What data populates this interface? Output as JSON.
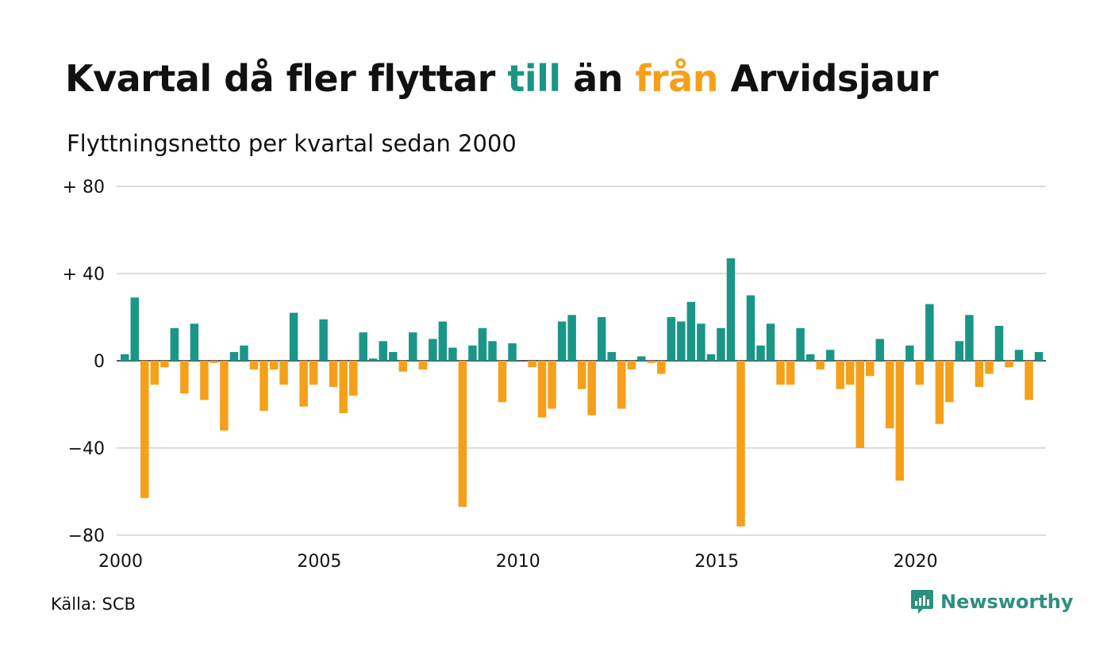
{
  "title": {
    "part1": "Kvartal då fler flyttar ",
    "till": "till",
    "part2": " än ",
    "fran": "från",
    "part3": " Arvidsjaur"
  },
  "subtitle": "Flyttningsnetto per kvartal sedan 2000",
  "source": "Källa: SCB",
  "brand": "Newsworthy",
  "colors": {
    "positive": "#1a9686",
    "negative": "#f5a01a",
    "grid": "#dddddd",
    "zero": "#222222"
  },
  "chart_data": {
    "type": "bar",
    "title": "Kvartal då fler flyttar till än från Arvidsjaur",
    "subtitle": "Flyttningsnetto per kvartal sedan 2000",
    "start_year": 2000,
    "periods_per_year": 4,
    "x_ticks": [
      "2000",
      "2005",
      "2010",
      "2015",
      "2020"
    ],
    "y_ticks": [
      {
        "value": 80,
        "label": "+ 80"
      },
      {
        "value": 40,
        "label": "+ 40"
      },
      {
        "value": 0,
        "label": "0"
      },
      {
        "value": -40,
        "label": "−40"
      },
      {
        "value": -80,
        "label": "−80"
      }
    ],
    "ylim": [
      -80,
      80
    ],
    "grid": true,
    "values": [
      3,
      29,
      -63,
      -11,
      -3,
      15,
      -15,
      17,
      -18,
      -1,
      -32,
      4,
      7,
      -4,
      -23,
      -4,
      -11,
      22,
      -21,
      -11,
      19,
      -12,
      -24,
      -16,
      13,
      1,
      9,
      4,
      -5,
      13,
      -4,
      10,
      18,
      6,
      -67,
      7,
      15,
      9,
      -19,
      8,
      0,
      -3,
      -26,
      -22,
      18,
      21,
      -13,
      -25,
      20,
      4,
      -22,
      -4,
      2,
      -1,
      -6,
      20,
      18,
      27,
      17,
      3,
      15,
      47,
      -76,
      30,
      7,
      17,
      -11,
      -11,
      15,
      3,
      -4,
      5,
      -13,
      -11,
      -40,
      -7,
      10,
      -31,
      -55,
      7,
      -11,
      26,
      -29,
      -19,
      9,
      21,
      -12,
      -6,
      16,
      -3,
      5,
      -18,
      4
    ]
  }
}
